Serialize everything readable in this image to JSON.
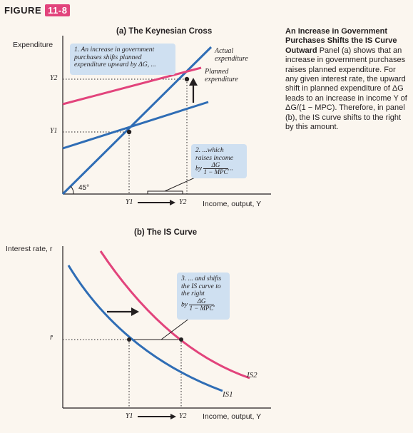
{
  "figure": {
    "label": "FIGURE",
    "number": "11-8"
  },
  "panel_a": {
    "title": "(a) The Keynesian Cross",
    "y_axis_label": "Expenditure",
    "x_axis_label": "Income, output, Y",
    "angle_label": "45°",
    "y_ticks": [
      "Y2",
      "Y1"
    ],
    "x_ticks": [
      "Y1",
      "Y2"
    ],
    "actual_label_1": "Actual",
    "actual_label_2": "expenditure",
    "planned_label_1": "Planned",
    "planned_label_2": "expenditure",
    "note1": "1. An increase in government purchases shifts planned expenditure upward by ΔG, ...",
    "note2_line1": "2. ...which",
    "note2_line2": "raises income",
    "note2_by": "by",
    "note2_num": "ΔG",
    "note2_den": "1 − MPC",
    "note2_tail": "..."
  },
  "panel_b": {
    "title": "(b) The IS Curve",
    "y_axis_label": "Interest rate, r",
    "x_axis_label": "Income, output, Y",
    "r_tick": "r̄",
    "x_ticks": [
      "Y1",
      "Y2"
    ],
    "is1_label": "IS1",
    "is2_label": "IS2",
    "note3_line1": "3. ... and shifts",
    "note3_line2": "the IS curve to",
    "note3_line3": "the right",
    "note3_by": "by",
    "note3_num": "ΔG",
    "note3_den": "1 − MPC",
    "note3_tail": "."
  },
  "caption": {
    "heading": "An Increase in Government Purchases Shifts the IS Curve Outward",
    "body": "Panel (a) shows that an increase in government purchases raises planned expenditure. For any given interest rate, the upward shift in planned expenditure of ΔG leads to an increase in income Y of ΔG/(1 − MPC). Therefore, in panel (b), the IS curve shifts to the right by this amount."
  },
  "colors": {
    "blue": "#2f6db5",
    "red": "#e2447c",
    "note_bg": "#cfe0f1",
    "background": "#fbf6ef"
  }
}
